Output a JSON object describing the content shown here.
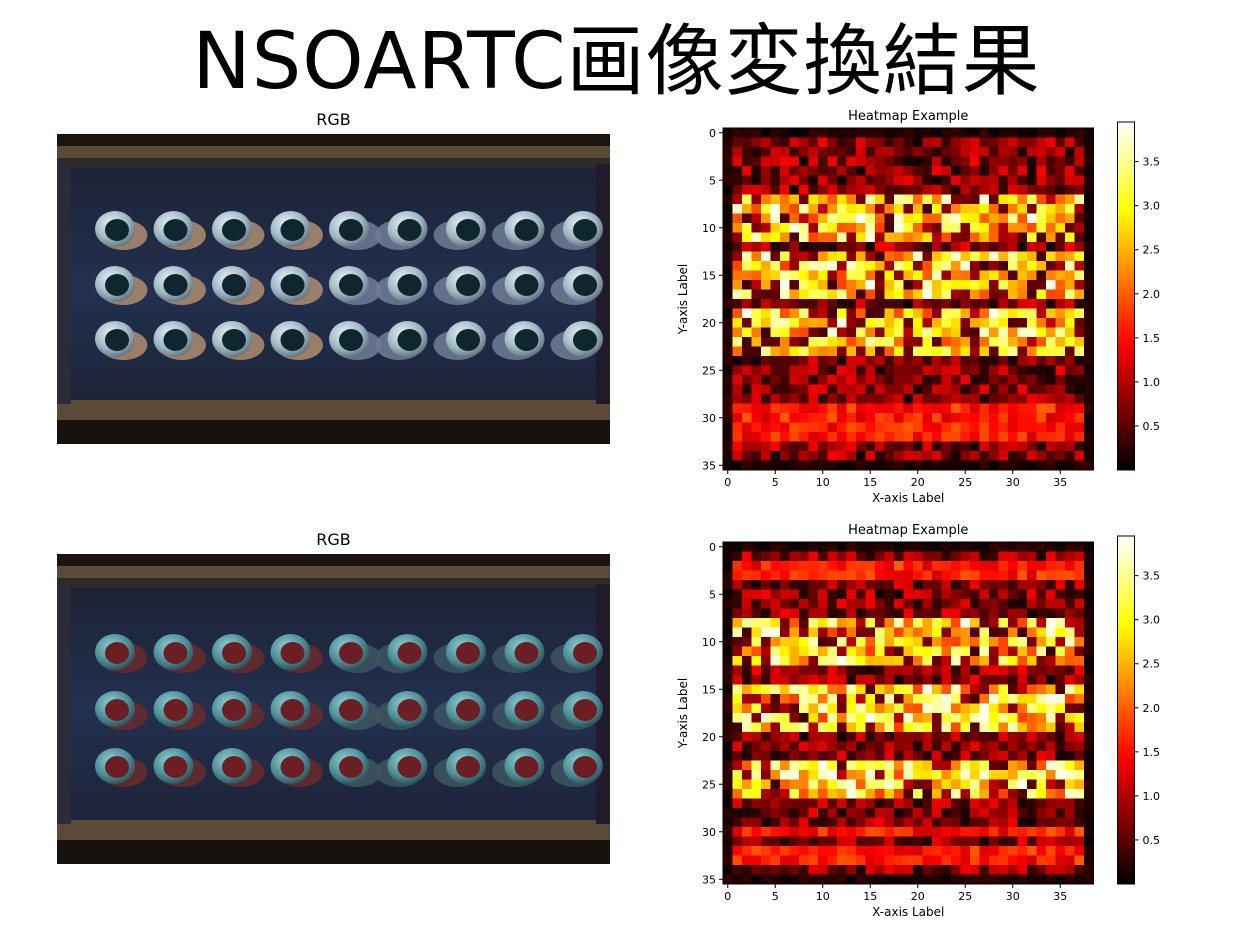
{
  "slide": {
    "title": "NSOARTC画像変換結果"
  },
  "images": [
    {
      "title": "RGB",
      "tint": "cool"
    },
    {
      "title": "RGB",
      "tint": "warm"
    }
  ],
  "chart_data": [
    {
      "type": "heatmap",
      "title": "Heatmap Example",
      "xlabel": "X-axis Label",
      "ylabel": "Y-axis Label",
      "cols": 39,
      "rows": 36,
      "xticks": [
        0,
        5,
        10,
        15,
        20,
        25,
        30,
        35
      ],
      "yticks": [
        0,
        5,
        10,
        15,
        20,
        25,
        30,
        35
      ],
      "colorbar_ticks": [
        "0.5",
        "1.0",
        "1.5",
        "2.0",
        "2.5",
        "3.0",
        "3.5"
      ],
      "vmin": 0,
      "vmax": 3.95,
      "colormap": "hot",
      "bright_bands": [
        [
          7,
          11
        ],
        [
          13,
          17
        ],
        [
          19,
          23
        ]
      ],
      "low_bands": [
        [
          29,
          30
        ],
        [
          31,
          32
        ]
      ],
      "seed": 7
    },
    {
      "type": "heatmap",
      "title": "Heatmap Example",
      "xlabel": "X-axis Label",
      "ylabel": "Y-axis Label",
      "cols": 39,
      "rows": 36,
      "xticks": [
        0,
        5,
        10,
        15,
        20,
        25,
        30,
        35
      ],
      "yticks": [
        0,
        5,
        10,
        15,
        20,
        25,
        30,
        35
      ],
      "colorbar_ticks": [
        "0.5",
        "1.0",
        "1.5",
        "2.0",
        "2.5",
        "3.0",
        "3.5"
      ],
      "vmin": 0,
      "vmax": 3.95,
      "colormap": "hot",
      "bright_bands": [
        [
          8,
          12
        ],
        [
          15,
          19
        ],
        [
          23,
          26
        ]
      ],
      "low_bands": [
        [
          2,
          3
        ],
        [
          30,
          30
        ],
        [
          32,
          33
        ]
      ],
      "seed": 19
    }
  ]
}
